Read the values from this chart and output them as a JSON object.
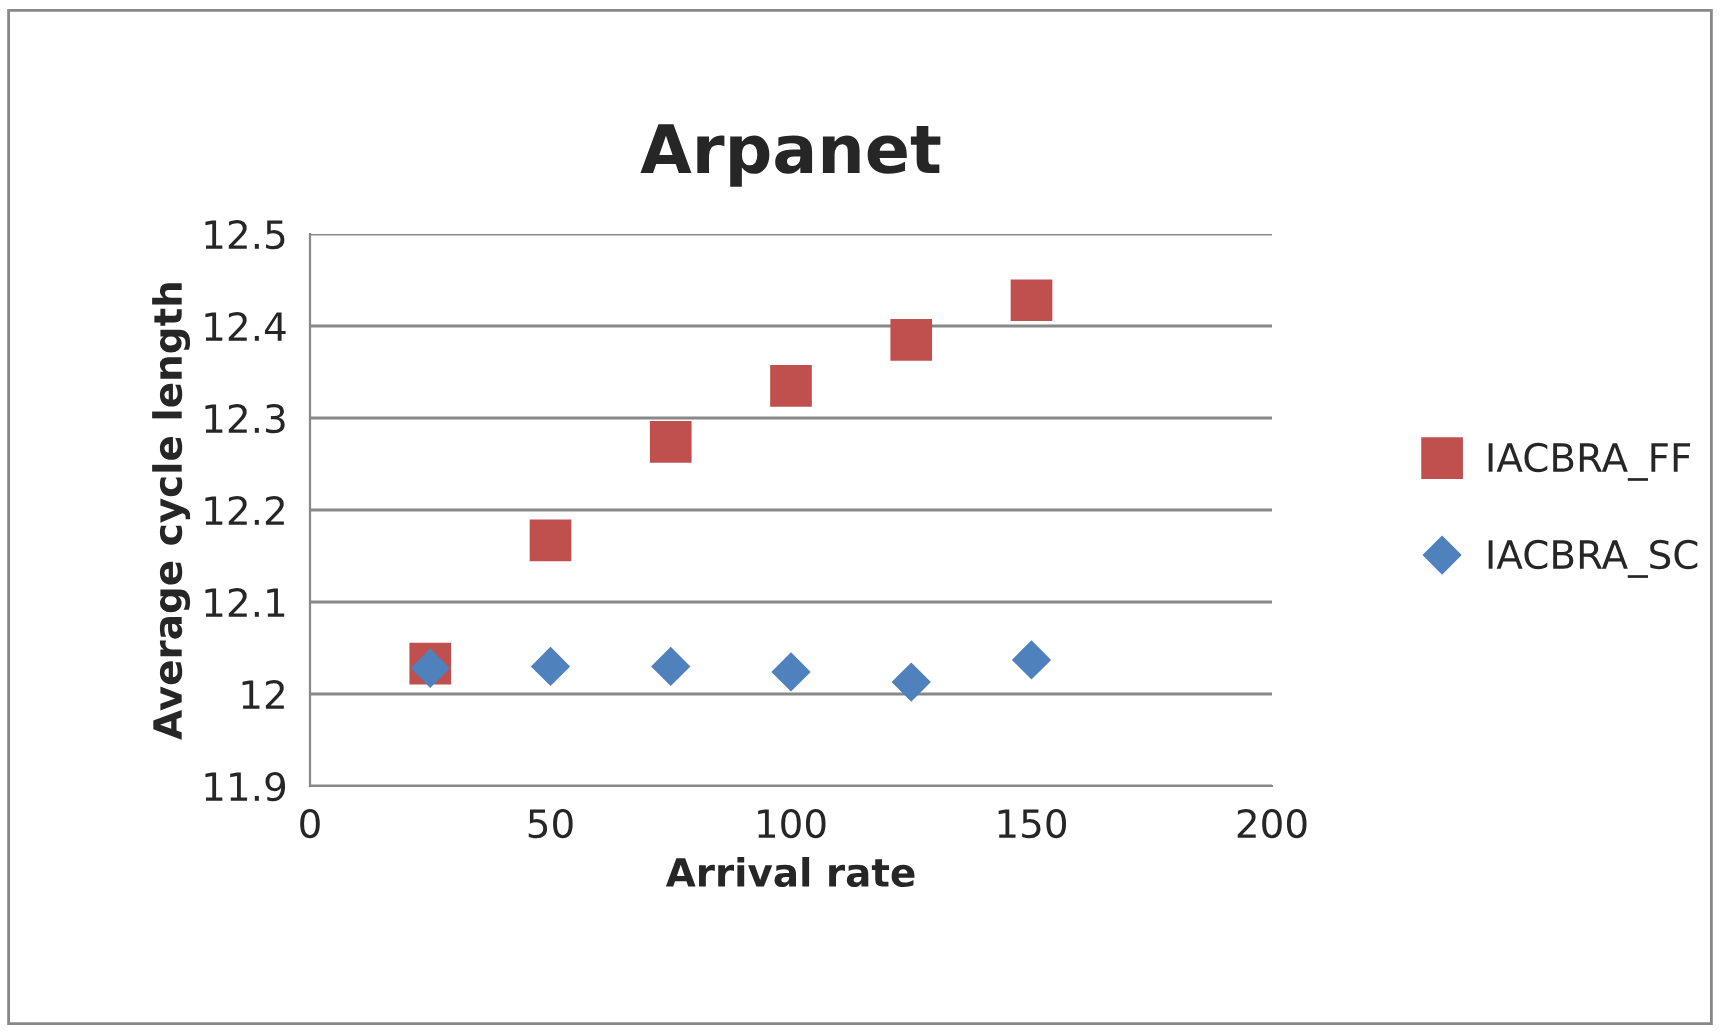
{
  "chart_data": {
    "type": "scatter",
    "title": "Arpanet",
    "xlabel": "Arrival rate",
    "ylabel": "Average cycle length",
    "series": [
      {
        "name": "IACBRA_FF",
        "color": "#c0504d",
        "marker": "square",
        "x": [
          25,
          50,
          75,
          100,
          125,
          150
        ],
        "values": [
          12.033,
          12.167,
          12.274,
          12.335,
          12.385,
          12.428
        ]
      },
      {
        "name": "IACBRA_SC",
        "color": "#4f81bd",
        "marker": "diamond",
        "x": [
          25,
          50,
          75,
          100,
          125,
          150
        ],
        "values": [
          12.028,
          12.03,
          12.03,
          12.024,
          12.013,
          12.037
        ]
      }
    ],
    "xlim": [
      0,
      200
    ],
    "xticks": [
      0,
      50,
      100,
      150,
      200
    ],
    "ylim": [
      11.9,
      12.5
    ],
    "yticks": [
      11.9,
      12,
      12.1,
      12.2,
      12.3,
      12.4,
      12.5
    ],
    "grid": "y",
    "legend": "right"
  }
}
